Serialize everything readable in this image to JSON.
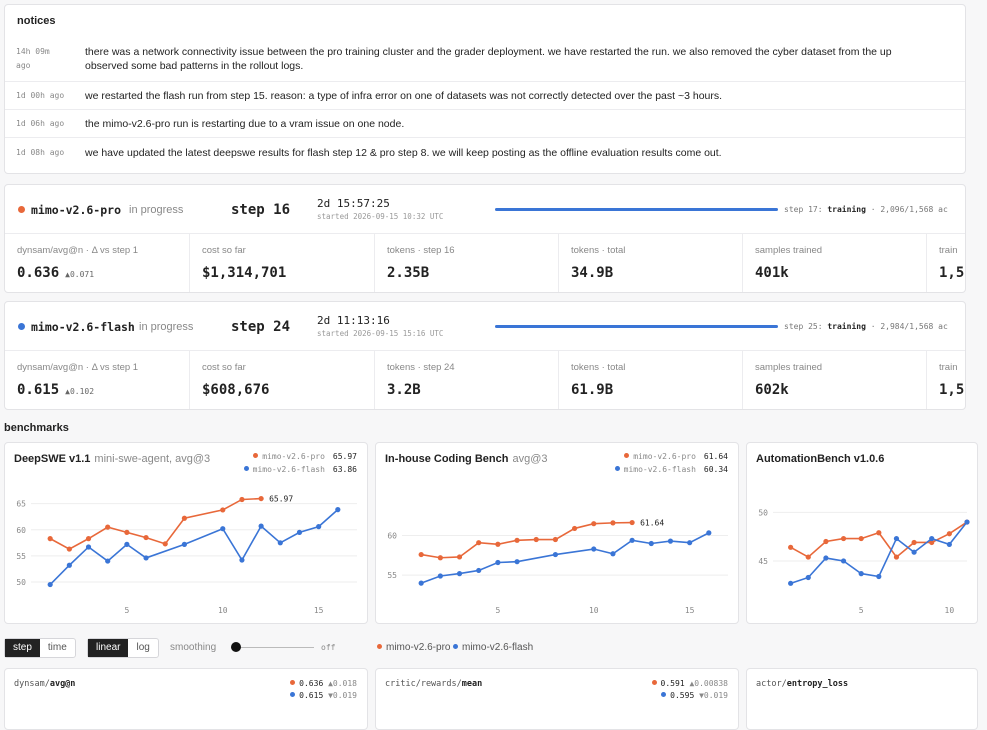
{
  "notices": {
    "title": "notices",
    "items": [
      {
        "time": "14h 09m ago",
        "text_1": "there was a network connectivity issue between the pro training cluster and the grader deployment. we have restarted the run. we also removed the cyber dataset from the up",
        "text_2": "observed some bad patterns in the rollout logs."
      },
      {
        "time": "1d 00h ago",
        "text_1": "we restarted the flash run from step 15. reason: a type of infra error on one of datasets was not correctly detected over the past ~3 hours."
      },
      {
        "time": "1d 06h ago",
        "text_1": "the mimo-v2.6-pro run is restarting due to a vram issue on one node."
      },
      {
        "time": "1d 08h ago",
        "text_1": "we have updated the latest deepswe results for flash step 12 & pro step 8. we will keep posting as the offline evaluation results come out."
      }
    ]
  },
  "runs": [
    {
      "name": "mimo-v2.6-pro",
      "color": "#e8683a",
      "status": "in progress",
      "step": "step 16",
      "elapsed": "2d 15:57:25",
      "started": "started 2026-09-15 10:32 UTC",
      "train_prefix": "step 17:",
      "train_state": "training",
      "train_suffix": "· 2,096/1,568 ac",
      "stats": [
        {
          "label": "dynsam/avg@n · Δ vs step 1",
          "value": "0.636",
          "delta": "▲0.071"
        },
        {
          "label": "cost so far",
          "value": "$1,314,701"
        },
        {
          "label": "tokens · step 16",
          "value": "2.35B"
        },
        {
          "label": "tokens · total",
          "value": "34.9B"
        },
        {
          "label": "samples trained",
          "value": "401k"
        },
        {
          "label": "train",
          "value": "1,5"
        }
      ]
    },
    {
      "name": "mimo-v2.6-flash",
      "color": "#3a75d6",
      "status": "in progress",
      "step": "step 24",
      "elapsed": "2d 11:13:16",
      "started": "started 2026-09-15 15:16 UTC",
      "train_prefix": "step 25:",
      "train_state": "training",
      "train_suffix": "· 2,984/1,568 ac",
      "stats": [
        {
          "label": "dynsam/avg@n · Δ vs step 1",
          "value": "0.615",
          "delta": "▲0.102"
        },
        {
          "label": "cost so far",
          "value": "$608,676"
        },
        {
          "label": "tokens · step 24",
          "value": "3.2B"
        },
        {
          "label": "tokens · total",
          "value": "61.9B"
        },
        {
          "label": "samples trained",
          "value": "602k"
        },
        {
          "label": "train",
          "value": "1,5"
        }
      ]
    }
  ],
  "benchmarks_title": "benchmarks",
  "chart_data": [
    {
      "type": "line",
      "title": "DeepSWE v1.1",
      "subtitle": "mini-swe-agent, avg@3",
      "xlim": [
        0,
        17
      ],
      "ylim": [
        47.5,
        68
      ],
      "xticks": [
        5,
        10,
        15
      ],
      "yticks": [
        50,
        55,
        60,
        65
      ],
      "series": [
        {
          "name": "mimo-v2.6-pro",
          "color": "#e8683a",
          "last": "65.97",
          "x": [
            1,
            2,
            3,
            4,
            5,
            6,
            7,
            8,
            10,
            11,
            12
          ],
          "y": [
            58.3,
            56.3,
            58.3,
            60.5,
            59.5,
            58.5,
            57.3,
            62.2,
            63.8,
            65.8,
            65.97
          ]
        },
        {
          "name": "mimo-v2.6-flash",
          "color": "#3a75d6",
          "last": "63.86",
          "x": [
            1,
            2,
            3,
            4,
            5,
            6,
            8,
            10,
            11,
            12,
            13,
            14,
            15,
            16
          ],
          "y": [
            49.5,
            53.2,
            56.7,
            54.0,
            57.2,
            54.6,
            57.2,
            60.2,
            54.2,
            60.7,
            57.5,
            59.5,
            60.6,
            63.86
          ]
        }
      ]
    },
    {
      "type": "line",
      "title": "In-house Coding Bench",
      "subtitle": "avg@3",
      "xlim": [
        0,
        17
      ],
      "ylim": [
        52.5,
        66
      ],
      "xticks": [
        5,
        10,
        15
      ],
      "yticks": [
        55,
        60
      ],
      "series": [
        {
          "name": "mimo-v2.6-pro",
          "color": "#e8683a",
          "last": "61.64",
          "x": [
            1,
            2,
            3,
            4,
            5,
            6,
            7,
            8,
            9,
            10,
            11,
            12
          ],
          "y": [
            57.6,
            57.2,
            57.3,
            59.1,
            58.9,
            59.4,
            59.5,
            59.5,
            60.9,
            61.5,
            61.6,
            61.64
          ]
        },
        {
          "name": "mimo-v2.6-flash",
          "color": "#3a75d6",
          "last": "60.34",
          "x": [
            1,
            2,
            3,
            4,
            5,
            6,
            8,
            10,
            11,
            12,
            13,
            14,
            15,
            16
          ],
          "y": [
            54.0,
            54.9,
            55.2,
            55.6,
            56.6,
            56.7,
            57.6,
            58.3,
            57.7,
            59.4,
            59.0,
            59.3,
            59.1,
            60.34
          ]
        }
      ]
    },
    {
      "type": "line",
      "title": "AutomationBench v1.0.6",
      "subtitle": "",
      "xlim": [
        0,
        11
      ],
      "ylim": [
        41.5,
        52.5
      ],
      "xticks": [
        5,
        10
      ],
      "yticks": [
        45,
        50
      ],
      "series": [
        {
          "name": "mimo-v2.6-pro",
          "color": "#e8683a",
          "x": [
            1,
            2,
            3,
            4,
            5,
            6,
            7,
            8,
            9,
            10,
            11
          ],
          "y": [
            46.4,
            45.4,
            47.0,
            47.3,
            47.3,
            47.9,
            45.4,
            46.9,
            46.9,
            47.8,
            49.0
          ]
        },
        {
          "name": "mimo-v2.6-flash",
          "color": "#3a75d6",
          "x": [
            1,
            2,
            3,
            4,
            5,
            6,
            7,
            8,
            9,
            10,
            11
          ],
          "y": [
            42.7,
            43.3,
            45.3,
            45.0,
            43.7,
            43.4,
            47.3,
            45.9,
            47.3,
            46.7,
            49.0
          ]
        }
      ]
    }
  ],
  "controls": {
    "step": "step",
    "time": "time",
    "linear": "linear",
    "log": "log",
    "smoothing": "smoothing",
    "smoothing_state": "off",
    "legend_pro": "mimo-v2.6-pro",
    "legend_flash": "mimo-v2.6-flash"
  },
  "mini_charts": [
    {
      "title_a": "dynsam/",
      "title_b": "avg@n",
      "pro": "0.636",
      "pro_delta": "▲0.018",
      "flash": "0.615",
      "flash_delta": "▼0.019"
    },
    {
      "title_a": "critic/rewards/",
      "title_b": "mean",
      "pro": "0.591",
      "pro_delta": "▲0.00838",
      "flash": "0.595",
      "flash_delta": "▼0.019"
    },
    {
      "title_a": "actor/",
      "title_b": "entropy_loss"
    }
  ]
}
